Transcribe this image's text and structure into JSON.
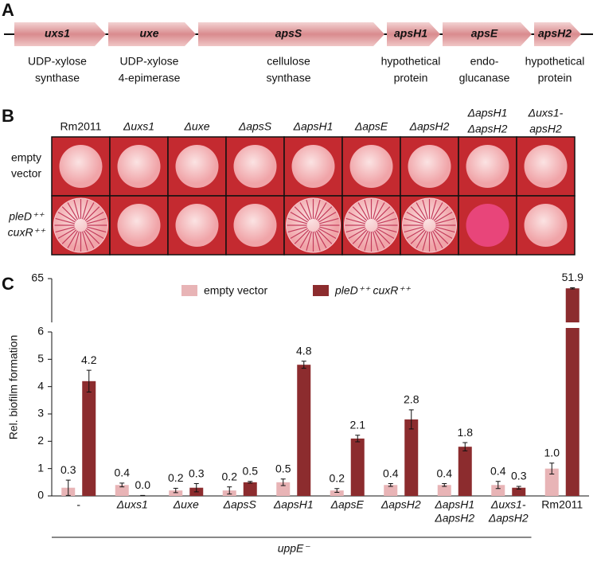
{
  "panel_a": {
    "letter": "A",
    "genes": [
      {
        "name": "uxs1",
        "description": [
          "UDP-xylose",
          "synthase"
        ]
      },
      {
        "name": "uxe",
        "description": [
          "UDP-xylose",
          "4-epimerase"
        ]
      },
      {
        "name": "apsS",
        "description": [
          "cellulose",
          "synthase"
        ]
      },
      {
        "name": "apsH1",
        "description": [
          "hypothetical",
          "protein"
        ]
      },
      {
        "name": "apsE",
        "description": [
          "endo-",
          "glucanase"
        ]
      },
      {
        "name": "apsH2",
        "description": [
          "hypothetical",
          "protein"
        ]
      }
    ]
  },
  "panel_b": {
    "letter": "B",
    "columns": [
      [
        "Rm2011"
      ],
      [
        "Δuxs1"
      ],
      [
        "Δuxe"
      ],
      [
        "ΔapsS"
      ],
      [
        "ΔapsH1"
      ],
      [
        "ΔapsE"
      ],
      [
        "ΔapsH2"
      ],
      [
        "ΔapsH1",
        "ΔapsH2"
      ],
      [
        "Δuxs1-",
        "apsH2"
      ]
    ],
    "rows": [
      [
        "empty",
        "vector"
      ],
      [
        "pleD⁺⁺",
        "cuxR⁺⁺"
      ]
    ]
  },
  "chart_data": {
    "type": "bar",
    "letter": "C",
    "y_label": "Rel. biofilm formation",
    "categories": [
      [
        "-"
      ],
      [
        "Δuxs1"
      ],
      [
        "Δuxe"
      ],
      [
        "ΔapsS"
      ],
      [
        "ΔapsH1"
      ],
      [
        "ΔapsE"
      ],
      [
        "ΔapsH2"
      ],
      [
        "ΔapsH1",
        "ΔapsH2"
      ],
      [
        "Δuxs1-",
        "ΔapsH2"
      ],
      [
        "Rm2011"
      ]
    ],
    "series": [
      {
        "name": "empty vector",
        "color": "#e8b4b6",
        "values": [
          0.3,
          0.4,
          0.2,
          0.2,
          0.5,
          0.2,
          0.4,
          0.4,
          0.4,
          1.0
        ],
        "value_labels": [
          "0.3",
          "0.4",
          "0.2",
          "0.2",
          "0.5",
          "0.2",
          "0.4",
          "0.4",
          "0.4",
          "1.0"
        ],
        "errors": [
          0.28,
          0.07,
          0.08,
          0.13,
          0.12,
          0.07,
          0.05,
          0.05,
          0.13,
          0.2
        ]
      },
      {
        "name": "pleD⁺⁺ cuxR⁺⁺",
        "color": "#8c2c2e",
        "values": [
          4.2,
          0.0,
          0.3,
          0.5,
          4.8,
          2.1,
          2.8,
          1.8,
          0.3,
          51.9
        ],
        "value_labels": [
          "4.2",
          "0.0",
          "0.3",
          "0.5",
          "4.8",
          "2.1",
          "2.8",
          "1.8",
          "0.3",
          "51.9"
        ],
        "errors": [
          0.4,
          0.02,
          0.15,
          0.03,
          0.13,
          0.12,
          0.35,
          0.15,
          0.05,
          0.8
        ]
      }
    ],
    "ylim": [
      0,
      65
    ],
    "yticks": [
      0,
      1,
      2,
      3,
      4,
      5,
      6,
      65
    ],
    "ybreak": 6,
    "group_label": "uppE⁻"
  }
}
